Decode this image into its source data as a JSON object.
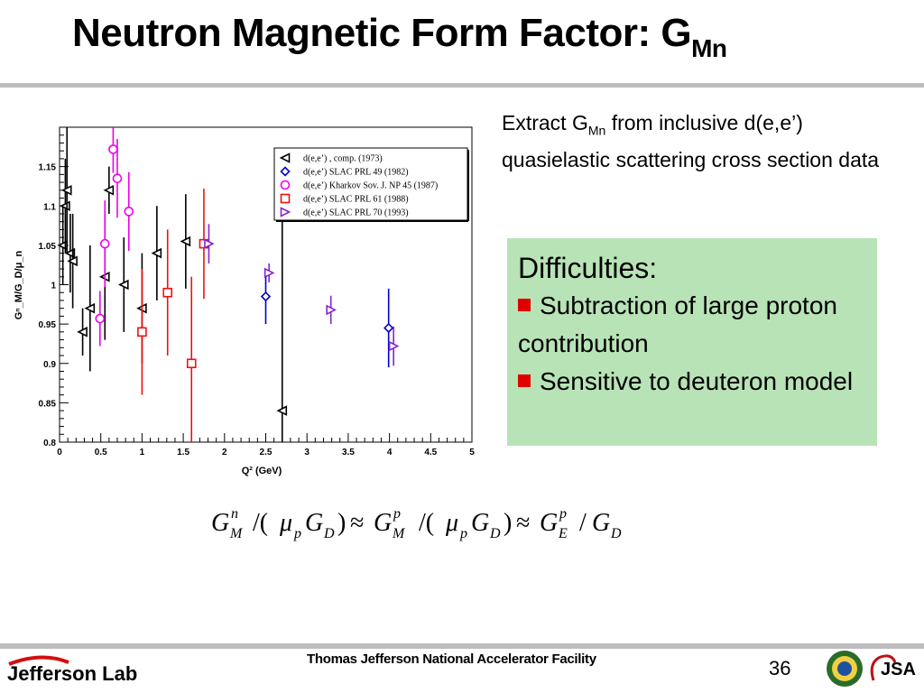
{
  "slide": {
    "title": "Neutron Magnetic Form Factor: G",
    "title_sub": "Mn",
    "extract_text_1": "Extract G",
    "extract_sub": "Mn",
    "extract_text_2": " from inclusive d(e,e’) quasielastic scattering cross section data",
    "difficulties_title": "Difficulties:",
    "bullet_1": "Subtraction of large proton contribution",
    "bullet_2": "Sensitive to deuteron model",
    "footer": "Thomas Jefferson National Accelerator Facility",
    "page_number": "36",
    "logo_text": "Jefferson Lab",
    "jsa_text": "JSA"
  },
  "colors": {
    "series1": "#000000",
    "series2": "#0000cc",
    "series3": "#ee00ee",
    "series4": "#ee1111",
    "series5": "#8822cc",
    "accent_bullet": "#e00000",
    "box_bg": "#b8e3b6"
  },
  "chart_data": {
    "type": "scatter",
    "xlabel": "Q² (GeV)",
    "ylabel": "Gⁿ_M/G_D/μ_n",
    "xlim": [
      0,
      5
    ],
    "ylim": [
      0.8,
      1.2
    ],
    "x_ticks": [
      "0",
      "0.5",
      "1",
      "1.5",
      "2",
      "2.5",
      "3",
      "3.5",
      "4",
      "4.5",
      "5"
    ],
    "y_ticks": [
      "0.8",
      "0.85",
      "0.9",
      "0.95",
      "1",
      "1.05",
      "1.1",
      "1.15"
    ],
    "legend_position": "top-right",
    "series": [
      {
        "name": "d(e,e’) , comp. (1973)",
        "marker": "triangle-left",
        "color": "#000000",
        "points": [
          {
            "x": 0.04,
            "y": 1.05,
            "err": 0.05
          },
          {
            "x": 0.07,
            "y": 1.1,
            "err": 0.06
          },
          {
            "x": 0.09,
            "y": 1.12,
            "err": 0.08
          },
          {
            "x": 0.13,
            "y": 1.04,
            "err": 0.05
          },
          {
            "x": 0.16,
            "y": 1.03,
            "err": 0.06
          },
          {
            "x": 0.28,
            "y": 0.94,
            "err": 0.03
          },
          {
            "x": 0.37,
            "y": 0.97,
            "err": 0.08
          },
          {
            "x": 0.55,
            "y": 1.01,
            "err": 0.08
          },
          {
            "x": 0.6,
            "y": 1.12,
            "err": 0.03
          },
          {
            "x": 0.78,
            "y": 1.0,
            "err": 0.06
          },
          {
            "x": 1.0,
            "y": 0.97,
            "err": 0.07
          },
          {
            "x": 1.18,
            "y": 1.04,
            "err": 0.06
          },
          {
            "x": 1.53,
            "y": 1.055,
            "err": 0.06
          },
          {
            "x": 2.7,
            "y": 0.84,
            "err": 0.3
          }
        ]
      },
      {
        "name": "d(e,e’) SLAC PRL 49 (1982)",
        "marker": "diamond",
        "color": "#0000cc",
        "points": [
          {
            "x": 2.5,
            "y": 0.985,
            "err": 0.035
          },
          {
            "x": 3.99,
            "y": 0.945,
            "err": 0.05
          }
        ]
      },
      {
        "name": "d(e,e’) Kharkov Sov. J. NP 45 (1987)",
        "marker": "circle",
        "color": "#ee00ee",
        "points": [
          {
            "x": 0.49,
            "y": 0.957,
            "err": 0.035
          },
          {
            "x": 0.55,
            "y": 1.052,
            "err": 0.055
          },
          {
            "x": 0.65,
            "y": 1.172,
            "err": 0.03
          },
          {
            "x": 0.7,
            "y": 1.135,
            "err": 0.05
          },
          {
            "x": 0.84,
            "y": 1.093,
            "err": 0.05
          }
        ]
      },
      {
        "name": "d(e,e’) SLAC PRL 61 (1988)",
        "marker": "square",
        "color": "#ee1111",
        "points": [
          {
            "x": 1.0,
            "y": 0.94,
            "err": 0.08
          },
          {
            "x": 1.31,
            "y": 0.99,
            "err": 0.08
          },
          {
            "x": 1.6,
            "y": 0.9,
            "err": 0.11
          },
          {
            "x": 1.75,
            "y": 1.052,
            "err": 0.07
          }
        ]
      },
      {
        "name": "d(e,e’) SLAC PRL 70 (1993)",
        "marker": "triangle-right",
        "color": "#8822cc",
        "points": [
          {
            "x": 1.81,
            "y": 1.052,
            "err": 0.025
          },
          {
            "x": 2.54,
            "y": 1.015,
            "err": 0.012
          },
          {
            "x": 3.29,
            "y": 0.968,
            "err": 0.018
          },
          {
            "x": 4.05,
            "y": 0.922,
            "err": 0.025
          }
        ]
      }
    ]
  }
}
